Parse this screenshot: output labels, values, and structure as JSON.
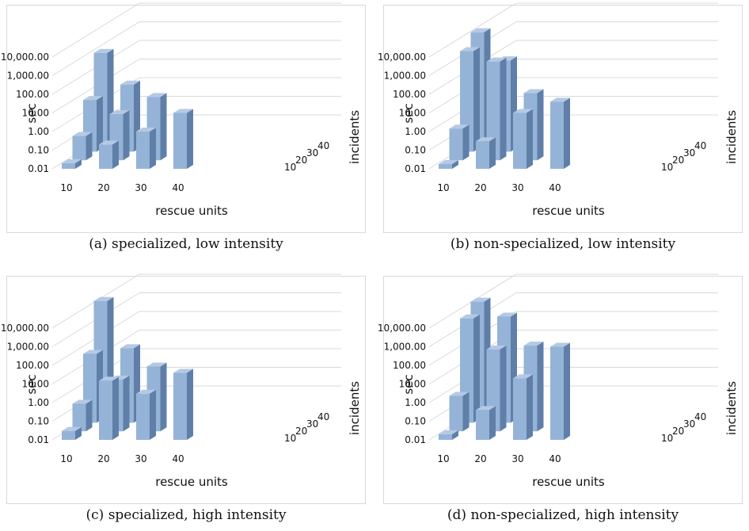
{
  "chart_data": [
    {
      "type": "bar",
      "caption": "(a) specialized, low intensity",
      "ylabel": "sec",
      "xlabel": "rescue units",
      "zlabel": "incidents",
      "yscale": "log",
      "ylim": [
        0.01,
        10000
      ],
      "y_ticks": [
        "0.01",
        "0.10",
        "1.00",
        "10.00",
        "100.00",
        "1,000.00",
        "10,000.00"
      ],
      "x_categories": [
        "10",
        "20",
        "30",
        "40"
      ],
      "z_categories": [
        "10",
        "20",
        "30",
        "40"
      ],
      "bars": [
        {
          "x": "10",
          "z": "10",
          "value": 0.02
        },
        {
          "x": "10",
          "z": "20",
          "value": 0.2
        },
        {
          "x": "20",
          "z": "10",
          "value": 0.2
        },
        {
          "x": "10",
          "z": "30",
          "value": 6
        },
        {
          "x": "20",
          "z": "20",
          "value": 3
        },
        {
          "x": "30",
          "z": "10",
          "value": 1
        },
        {
          "x": "10",
          "z": "40",
          "value": 700
        },
        {
          "x": "20",
          "z": "30",
          "value": 40
        },
        {
          "x": "30",
          "z": "20",
          "value": 25
        },
        {
          "x": "40",
          "z": "10",
          "value": 10
        }
      ]
    },
    {
      "type": "bar",
      "caption": "(b) non-specialized, low intensity",
      "ylabel": "sec",
      "xlabel": "rescue units",
      "zlabel": "incidents",
      "yscale": "log",
      "ylim": [
        0.01,
        10000
      ],
      "y_ticks": [
        "0.01",
        "0.10",
        "1.00",
        "10.00",
        "100.00",
        "1,000.00",
        "10,000.00"
      ],
      "x_categories": [
        "10",
        "20",
        "30",
        "40"
      ],
      "z_categories": [
        "10",
        "20",
        "30",
        "40"
      ],
      "bars": [
        {
          "x": "10",
          "z": "10",
          "value": 0.015
        },
        {
          "x": "10",
          "z": "20",
          "value": 0.5
        },
        {
          "x": "20",
          "z": "10",
          "value": 0.3
        },
        {
          "x": "10",
          "z": "30",
          "value": 2500
        },
        {
          "x": "20",
          "z": "20",
          "value": 2000
        },
        {
          "x": "30",
          "z": "10",
          "value": 10
        },
        {
          "x": "10",
          "z": "40",
          "value": 9000
        },
        {
          "x": "20",
          "z": "30",
          "value": 800
        },
        {
          "x": "30",
          "z": "20",
          "value": 40
        },
        {
          "x": "40",
          "z": "10",
          "value": 40
        }
      ]
    },
    {
      "type": "bar",
      "caption": "(c) specialized, high intensity",
      "ylabel": "sec",
      "xlabel": "rescue units",
      "zlabel": "incidents",
      "yscale": "log",
      "ylim": [
        0.01,
        10000
      ],
      "y_ticks": [
        "0.01",
        "0.10",
        "1.00",
        "10.00",
        "100.00",
        "1,000.00",
        "10,000.00"
      ],
      "x_categories": [
        "10",
        "20",
        "30",
        "40"
      ],
      "z_categories": [
        "10",
        "20",
        "30",
        "40"
      ],
      "bars": [
        {
          "x": "10",
          "z": "10",
          "value": 0.03
        },
        {
          "x": "10",
          "z": "20",
          "value": 0.3
        },
        {
          "x": "20",
          "z": "10",
          "value": 15
        },
        {
          "x": "10",
          "z": "30",
          "value": 50
        },
        {
          "x": "20",
          "z": "20",
          "value": 6
        },
        {
          "x": "30",
          "z": "10",
          "value": 3
        },
        {
          "x": "10",
          "z": "40",
          "value": 12000
        },
        {
          "x": "20",
          "z": "30",
          "value": 100
        },
        {
          "x": "30",
          "z": "20",
          "value": 30
        },
        {
          "x": "40",
          "z": "10",
          "value": 40
        }
      ]
    },
    {
      "type": "bar",
      "caption": "(d) non-specialized, high intensity",
      "ylabel": "sec",
      "xlabel": "rescue units",
      "zlabel": "incidents",
      "yscale": "log",
      "ylim": [
        0.01,
        10000
      ],
      "y_ticks": [
        "0.01",
        "0.10",
        "1.00",
        "10.00",
        "100.00",
        "1,000.00",
        "10,000.00"
      ],
      "x_categories": [
        "10",
        "20",
        "30",
        "40"
      ],
      "z_categories": [
        "10",
        "20",
        "30",
        "40"
      ],
      "bars": [
        {
          "x": "10",
          "z": "10",
          "value": 0.02
        },
        {
          "x": "10",
          "z": "20",
          "value": 0.8
        },
        {
          "x": "20",
          "z": "10",
          "value": 0.4
        },
        {
          "x": "10",
          "z": "30",
          "value": 4000
        },
        {
          "x": "20",
          "z": "20",
          "value": 250
        },
        {
          "x": "30",
          "z": "10",
          "value": 20
        },
        {
          "x": "10",
          "z": "40",
          "value": 11000
        },
        {
          "x": "20",
          "z": "30",
          "value": 5000
        },
        {
          "x": "30",
          "z": "20",
          "value": 400
        },
        {
          "x": "40",
          "z": "10",
          "value": 1000
        }
      ]
    }
  ],
  "colors": {
    "bar_front": "#95b3d7",
    "bar_side": "#5f7fa8",
    "bar_top": "#b4c9e4",
    "grid": "#d9d9d9",
    "frame_border": "#d9d9d9"
  }
}
